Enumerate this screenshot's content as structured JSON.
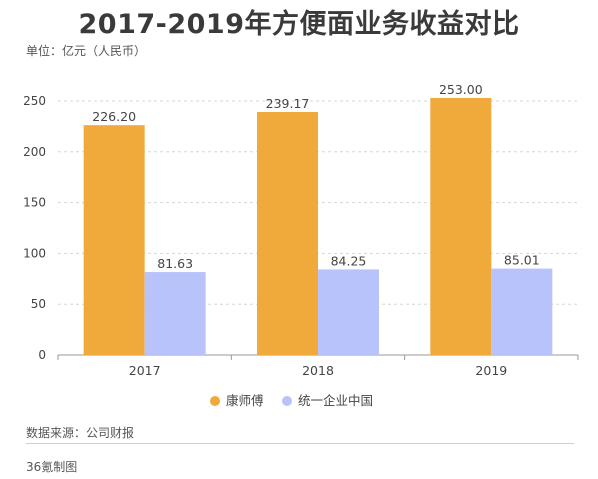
{
  "title": "2017-2019年方便面业务收益对比",
  "unit_label": "单位：亿元（人民币）",
  "source": "数据来源：公司财报",
  "credit": "36氪制图",
  "chart_data": {
    "type": "bar",
    "title": "2017-2019年方便面业务收益对比",
    "xlabel": "",
    "ylabel": "",
    "categories": [
      "2017",
      "2018",
      "2019"
    ],
    "ylim": [
      0,
      250
    ],
    "yticks": [
      0,
      50,
      100,
      150,
      200,
      250
    ],
    "grid": true,
    "legend_position": "bottom-center",
    "series": [
      {
        "name": "康师傅",
        "color": "#F0A93B",
        "values": [
          226.2,
          239.17,
          253.0
        ]
      },
      {
        "name": "统一企业中国",
        "color": "#B9C3FB",
        "values": [
          81.63,
          84.25,
          85.01
        ]
      }
    ]
  }
}
